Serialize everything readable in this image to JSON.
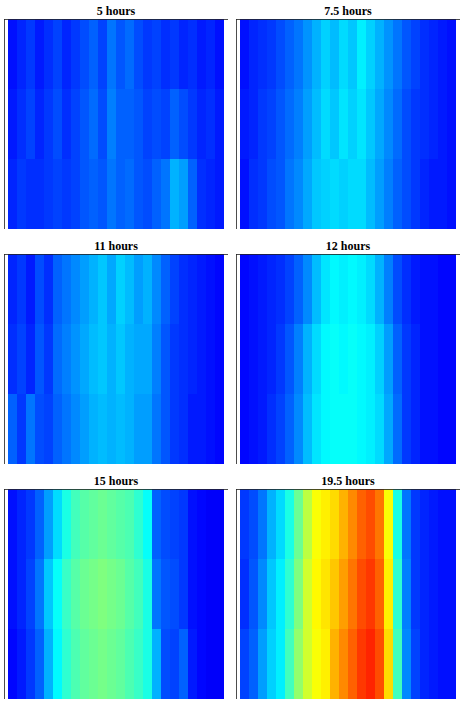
{
  "chart_data": [
    {
      "type": "heatmap",
      "title": "5 hours",
      "zlim": [
        0,
        1
      ],
      "tick_labels": false,
      "cells": [
        [
          0.14,
          0.16,
          0.18,
          0.15,
          0.17,
          0.19,
          0.16,
          0.18,
          0.2,
          0.22,
          0.19,
          0.24,
          0.21,
          0.23,
          0.2,
          0.18,
          0.19,
          0.17,
          0.18,
          0.16,
          0.17,
          0.15,
          0.16,
          0.14
        ],
        [
          0.15,
          0.17,
          0.19,
          0.16,
          0.18,
          0.2,
          0.17,
          0.19,
          0.21,
          0.23,
          0.2,
          0.25,
          0.22,
          0.22,
          0.21,
          0.19,
          0.2,
          0.19,
          0.22,
          0.2,
          0.18,
          0.16,
          0.17,
          0.15
        ],
        [
          0.16,
          0.18,
          0.17,
          0.17,
          0.18,
          0.19,
          0.18,
          0.19,
          0.21,
          0.22,
          0.21,
          0.24,
          0.22,
          0.23,
          0.21,
          0.2,
          0.22,
          0.24,
          0.3,
          0.28,
          0.22,
          0.17,
          0.16,
          0.15
        ]
      ]
    },
    {
      "type": "heatmap",
      "title": "7.5 hours",
      "zlim": [
        0,
        1
      ],
      "tick_labels": false,
      "cells": [
        [
          0.14,
          0.16,
          0.17,
          0.18,
          0.2,
          0.22,
          0.24,
          0.27,
          0.3,
          0.33,
          0.31,
          0.34,
          0.32,
          0.36,
          0.33,
          0.3,
          0.27,
          0.24,
          0.21,
          0.19,
          0.17,
          0.16,
          0.15,
          0.14
        ],
        [
          0.15,
          0.16,
          0.18,
          0.19,
          0.21,
          0.23,
          0.25,
          0.28,
          0.31,
          0.34,
          0.32,
          0.35,
          0.33,
          0.35,
          0.32,
          0.29,
          0.26,
          0.23,
          0.2,
          0.18,
          0.17,
          0.16,
          0.15,
          0.14
        ],
        [
          0.14,
          0.17,
          0.18,
          0.2,
          0.21,
          0.24,
          0.26,
          0.29,
          0.32,
          0.33,
          0.34,
          0.33,
          0.34,
          0.34,
          0.31,
          0.28,
          0.25,
          0.22,
          0.2,
          0.18,
          0.16,
          0.15,
          0.15,
          0.14
        ]
      ]
    },
    {
      "type": "heatmap",
      "title": "11 hours",
      "zlim": [
        0,
        1
      ],
      "tick_labels": false,
      "cells": [
        [
          0.16,
          0.18,
          0.15,
          0.2,
          0.17,
          0.22,
          0.24,
          0.26,
          0.28,
          0.3,
          0.32,
          0.29,
          0.33,
          0.31,
          0.28,
          0.3,
          0.26,
          0.22,
          0.19,
          0.17,
          0.16,
          0.15,
          0.14,
          0.13
        ],
        [
          0.17,
          0.19,
          0.16,
          0.21,
          0.18,
          0.23,
          0.25,
          0.27,
          0.29,
          0.31,
          0.32,
          0.3,
          0.32,
          0.3,
          0.29,
          0.29,
          0.25,
          0.21,
          0.18,
          0.17,
          0.16,
          0.15,
          0.14,
          0.13
        ],
        [
          0.22,
          0.18,
          0.24,
          0.2,
          0.19,
          0.22,
          0.24,
          0.26,
          0.28,
          0.3,
          0.31,
          0.3,
          0.31,
          0.3,
          0.28,
          0.28,
          0.24,
          0.21,
          0.18,
          0.17,
          0.15,
          0.15,
          0.14,
          0.13
        ]
      ]
    },
    {
      "type": "heatmap",
      "title": "12 hours",
      "zlim": [
        0,
        1
      ],
      "tick_labels": false,
      "cells": [
        [
          0.13,
          0.14,
          0.15,
          0.16,
          0.17,
          0.19,
          0.22,
          0.26,
          0.31,
          0.35,
          0.37,
          0.36,
          0.37,
          0.36,
          0.34,
          0.3,
          0.25,
          0.2,
          0.17,
          0.15,
          0.14,
          0.14,
          0.13,
          0.13
        ],
        [
          0.13,
          0.14,
          0.15,
          0.16,
          0.18,
          0.21,
          0.25,
          0.3,
          0.34,
          0.37,
          0.38,
          0.37,
          0.38,
          0.37,
          0.36,
          0.33,
          0.28,
          0.22,
          0.18,
          0.16,
          0.14,
          0.14,
          0.13,
          0.13
        ],
        [
          0.13,
          0.14,
          0.15,
          0.17,
          0.19,
          0.22,
          0.26,
          0.31,
          0.35,
          0.37,
          0.38,
          0.38,
          0.38,
          0.37,
          0.36,
          0.34,
          0.29,
          0.23,
          0.18,
          0.16,
          0.14,
          0.14,
          0.13,
          0.13
        ]
      ]
    },
    {
      "type": "heatmap",
      "title": "15 hours",
      "zlim": [
        0,
        1
      ],
      "tick_labels": false,
      "cells": [
        [
          0.14,
          0.16,
          0.18,
          0.22,
          0.28,
          0.34,
          0.4,
          0.44,
          0.46,
          0.47,
          0.48,
          0.47,
          0.46,
          0.45,
          0.42,
          0.38,
          0.22,
          0.2,
          0.19,
          0.18,
          0.14,
          0.13,
          0.12,
          0.12
        ],
        [
          0.14,
          0.16,
          0.19,
          0.24,
          0.32,
          0.38,
          0.43,
          0.46,
          0.48,
          0.49,
          0.5,
          0.49,
          0.48,
          0.46,
          0.44,
          0.4,
          0.24,
          0.21,
          0.2,
          0.18,
          0.14,
          0.13,
          0.12,
          0.12
        ],
        [
          0.13,
          0.15,
          0.18,
          0.22,
          0.3,
          0.37,
          0.42,
          0.45,
          0.47,
          0.48,
          0.49,
          0.48,
          0.47,
          0.45,
          0.43,
          0.4,
          0.3,
          0.2,
          0.19,
          0.22,
          0.15,
          0.13,
          0.12,
          0.12
        ]
      ]
    },
    {
      "type": "heatmap",
      "title": "19.5 hours",
      "zlim": [
        0,
        1
      ],
      "tick_labels": false,
      "cells": [
        [
          0.18,
          0.2,
          0.24,
          0.3,
          0.34,
          0.4,
          0.48,
          0.56,
          0.62,
          0.64,
          0.66,
          0.7,
          0.74,
          0.78,
          0.8,
          0.76,
          0.62,
          0.4,
          0.24,
          0.18,
          0.16,
          0.15,
          0.14,
          0.14
        ],
        [
          0.17,
          0.21,
          0.26,
          0.32,
          0.36,
          0.42,
          0.5,
          0.58,
          0.63,
          0.65,
          0.68,
          0.72,
          0.76,
          0.8,
          0.82,
          0.78,
          0.64,
          0.42,
          0.25,
          0.18,
          0.16,
          0.15,
          0.14,
          0.14
        ],
        [
          0.19,
          0.22,
          0.28,
          0.33,
          0.36,
          0.44,
          0.52,
          0.58,
          0.62,
          0.64,
          0.7,
          0.74,
          0.78,
          0.82,
          0.84,
          0.8,
          0.66,
          0.44,
          0.26,
          0.19,
          0.16,
          0.15,
          0.14,
          0.14
        ]
      ]
    }
  ]
}
